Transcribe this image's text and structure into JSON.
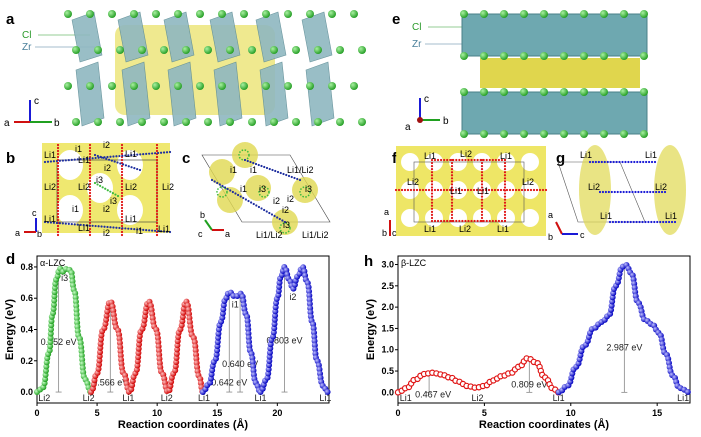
{
  "panels": {
    "a": {
      "letter": "a",
      "labels": [
        "Cl",
        "Zr"
      ],
      "axes": [
        "c",
        "a",
        "b"
      ]
    },
    "b": {
      "letter": "b",
      "sites": [
        "Li1",
        "i1",
        "i2",
        "Li1",
        "Li1",
        "Li2",
        "Li2",
        "i2",
        "i3",
        "Li2",
        "Li2",
        "i3",
        "i1",
        "i2",
        "Li1",
        "Li1",
        "Li1",
        "Li1",
        "i2",
        "i1"
      ],
      "axes": [
        "c",
        "a",
        "b"
      ]
    },
    "c": {
      "letter": "c",
      "sites": [
        "i1",
        "i1",
        "Li1/Li2",
        "i1",
        "i3",
        "i2",
        "i2",
        "i3",
        "i2",
        "i3",
        "Li1/Li2",
        "Li1/Li2"
      ],
      "axes": [
        "b",
        "c",
        "a"
      ]
    },
    "e": {
      "letter": "e",
      "labels": [
        "Cl",
        "Zr"
      ],
      "axes": [
        "c",
        "a",
        "b"
      ]
    },
    "f": {
      "letter": "f",
      "sites": [
        "Li1",
        "Li2",
        "Li1",
        "Li2",
        "Li1",
        "Li1",
        "Li2",
        "Li1",
        "Li2",
        "Li1"
      ],
      "axes": [
        "a",
        "b",
        "c"
      ]
    },
    "g": {
      "letter": "g",
      "sites": [
        "Li1",
        "Li1",
        "Li2",
        "Li2",
        "Li1",
        "Li1"
      ],
      "axes": [
        "a",
        "b",
        "c"
      ]
    }
  },
  "chart_data": [
    {
      "panel": "d",
      "type": "line",
      "title": "α-LZC",
      "xlabel": "Reaction coordinates (Å)",
      "ylabel": "Energy (eV)",
      "xlim": [
        0,
        24.3
      ],
      "ylim": [
        -0.07,
        0.87
      ],
      "xticks": [
        0,
        5,
        10,
        15,
        20
      ],
      "yticks": [
        0.0,
        0.2,
        0.4,
        0.6,
        0.8
      ],
      "series": [
        {
          "color": "#3dbb3d",
          "x": [
            0,
            0.5,
            1,
            1.3,
            1.6,
            1.9,
            2.2,
            2.5,
            2.8,
            3.1,
            3.5,
            4,
            4.5
          ],
          "y": [
            0,
            0.03,
            0.25,
            0.5,
            0.72,
            0.79,
            0.77,
            0.79,
            0.78,
            0.65,
            0.35,
            0.08,
            0
          ]
        },
        {
          "color": "#e01515",
          "x": [
            4.5,
            5,
            5.5,
            6.1,
            6.7,
            7.2,
            7.7,
            8.2,
            8.7,
            9.3,
            9.9,
            10.4,
            10.9,
            11.4,
            11.9,
            12.4,
            13,
            13.5,
            13.8
          ],
          "y": [
            0,
            0.12,
            0.4,
            0.58,
            0.4,
            0.12,
            0,
            0.12,
            0.4,
            0.58,
            0.4,
            0.12,
            0,
            0.12,
            0.4,
            0.58,
            0.35,
            0.1,
            0
          ]
        },
        {
          "color": "#1a1ad6",
          "x": [
            13.8,
            14.3,
            14.8,
            15.3,
            15.7,
            16.0,
            16.5,
            17.0,
            17.4,
            17.8,
            18.2,
            18.6
          ],
          "y": [
            0,
            0.05,
            0.2,
            0.45,
            0.6,
            0.64,
            0.61,
            0.63,
            0.5,
            0.25,
            0.06,
            0
          ]
        },
        {
          "color": "#1a1ad6",
          "x": [
            18.6,
            19.1,
            19.6,
            20.0,
            20.3,
            20.6,
            21.0,
            21.3,
            21.7,
            22.1,
            22.5,
            22.9,
            23.3,
            23.8,
            24.2
          ],
          "y": [
            0,
            0.08,
            0.35,
            0.6,
            0.74,
            0.8,
            0.72,
            0.66,
            0.74,
            0.8,
            0.7,
            0.45,
            0.2,
            0.04,
            0
          ]
        }
      ],
      "site_labels": [
        {
          "text": "Li2",
          "x": 0.1
        },
        {
          "text": "Li2",
          "x": 4.3
        },
        {
          "text": "Li1",
          "x": 7.6
        },
        {
          "text": "Li2",
          "x": 10.8
        },
        {
          "text": "Li1",
          "x": 13.9
        },
        {
          "text": "Li1",
          "x": 18.6
        },
        {
          "text": "Li1",
          "x": 24.0
        }
      ],
      "peak_labels": [
        {
          "text": "i3",
          "x": 2.3,
          "y": 0.71
        },
        {
          "text": "i1",
          "x": 16.5,
          "y": 0.54
        },
        {
          "text": "i2",
          "x": 21.3,
          "y": 0.59
        }
      ],
      "barriers": [
        {
          "text": "0.752 eV",
          "x": 1.8,
          "top": 0.79,
          "label_y": 0.32
        },
        {
          "text": "0.566 eV",
          "x": 6.1,
          "top": 0.58,
          "label_y": 0.06
        },
        {
          "text": "0.642 eV",
          "x": 16.0,
          "top": 0.64,
          "label_y": 0.06
        },
        {
          "text": "0.640 eV",
          "x": 16.9,
          "top": 0.63,
          "label_y": 0.18
        },
        {
          "text": "0.803 eV",
          "x": 20.6,
          "top": 0.8,
          "label_y": 0.33
        }
      ]
    },
    {
      "panel": "h",
      "type": "line",
      "title": "β-LZC",
      "xlabel": "Reaction coordinates (Å)",
      "ylabel": "Energy (eV)",
      "xlim": [
        0,
        16.9
      ],
      "ylim": [
        -0.25,
        3.2
      ],
      "xticks": [
        0,
        5,
        10,
        15
      ],
      "yticks": [
        0.0,
        0.5,
        1.0,
        1.5,
        2.0,
        2.5,
        3.0
      ],
      "series": [
        {
          "color": "#e01515",
          "hollow": true,
          "x": [
            0,
            0.5,
            1,
            1.5,
            2,
            2.5,
            3,
            3.5,
            4,
            4.5,
            5,
            5.5,
            6,
            6.5,
            7,
            7.5,
            8,
            8.5,
            9,
            9.3
          ],
          "y": [
            0,
            0.1,
            0.3,
            0.43,
            0.46,
            0.42,
            0.35,
            0.25,
            0.15,
            0.11,
            0.15,
            0.28,
            0.38,
            0.45,
            0.6,
            0.8,
            0.7,
            0.35,
            0.08,
            0
          ]
        },
        {
          "color": "#1a1ad6",
          "x": [
            9.3,
            9.8,
            10.3,
            10.8,
            11.3,
            11.8,
            12.2,
            12.6,
            13.0,
            13.2,
            13.5,
            13.9,
            14.3,
            14.7,
            15.1,
            15.5,
            15.9,
            16.3,
            16.9
          ],
          "y": [
            0,
            0.15,
            0.6,
            1.1,
            1.5,
            1.65,
            1.8,
            2.5,
            2.95,
            2.99,
            2.8,
            2.1,
            1.7,
            1.6,
            1.4,
            0.9,
            0.4,
            0.1,
            0
          ]
        }
      ],
      "site_labels": [
        {
          "text": "Li1",
          "x": 0.1
        },
        {
          "text": "Li2",
          "x": 4.6
        },
        {
          "text": "Li1",
          "x": 9.3
        },
        {
          "text": "Li1",
          "x": 16.5
        }
      ],
      "peak_labels": [],
      "barriers": [
        {
          "text": "0.467 eV",
          "x": 1.8,
          "top": 0.46,
          "label_y": -0.05,
          "label_dx": 2.2
        },
        {
          "text": "0.809 eV",
          "x": 7.6,
          "top": 0.8,
          "label_y": 0.18
        },
        {
          "text": "2.987 eV",
          "x": 13.1,
          "top": 2.99,
          "label_y": 1.05
        }
      ]
    }
  ]
}
